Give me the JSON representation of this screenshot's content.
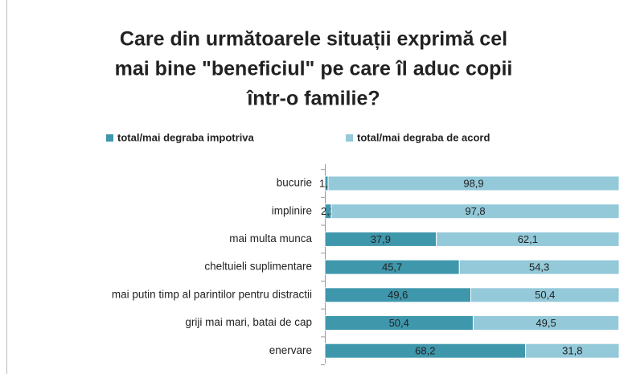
{
  "chart_data": {
    "type": "stacked_bar_horizontal",
    "title_lines": [
      "Care din următoarele situații exprimă cel",
      "mai bine \"beneficiul\" pe care îl aduc copii",
      "într-o familie?"
    ],
    "categories": [
      "bucurie",
      "implinire",
      "mai multa munca",
      "cheltuieli suplimentare",
      "mai putin timp al parintilor pentru distractii",
      "griji mai mari, batai de cap",
      "enervare"
    ],
    "series": [
      {
        "name": "total/mai degraba impotriva",
        "color": "#3f97ac",
        "values": [
          1.1,
          2.2,
          37.9,
          45.7,
          49.6,
          50.4,
          68.2
        ],
        "value_labels": [
          "1,1",
          "2,2",
          "37,9",
          "45,7",
          "49,6",
          "50,4",
          "68,2"
        ]
      },
      {
        "name": "total/mai degraba de acord",
        "color": "#93c9d9",
        "values": [
          98.9,
          97.8,
          62.1,
          54.3,
          50.4,
          49.5,
          31.8
        ],
        "value_labels": [
          "98,9",
          "97,8",
          "62,1",
          "54,3",
          "50,4",
          "49,5",
          "31,8"
        ]
      }
    ],
    "xlim": [
      0,
      100
    ]
  }
}
